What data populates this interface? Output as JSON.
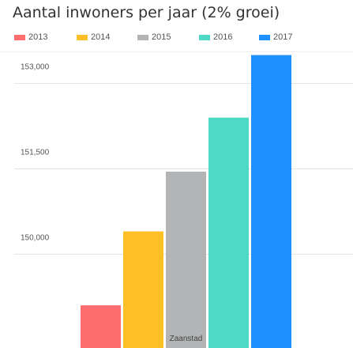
{
  "chart_data": {
    "type": "bar",
    "title": "Aantal inwoners per jaar (2% groei)",
    "xlabel": "",
    "ylabel": "",
    "categories": [
      "Zaanstad"
    ],
    "series": [
      {
        "name": "2013",
        "color": "#ff6e6e",
        "values": [
          149100
        ]
      },
      {
        "name": "2014",
        "color": "#ffbf26",
        "values": [
          150400
        ]
      },
      {
        "name": "2015",
        "color": "#b2b4b6",
        "values": [
          151450
        ]
      },
      {
        "name": "2016",
        "color": "#4dd9c5",
        "values": [
          152400
        ]
      },
      {
        "name": "2017",
        "color": "#1e90ff",
        "values": [
          153500
        ]
      }
    ],
    "yticks": [
      {
        "value": 150000,
        "label": "150,000"
      },
      {
        "value": 151500,
        "label": "151,500"
      },
      {
        "value": 153000,
        "label": "153,000"
      }
    ],
    "ylim": [
      148350,
      153550
    ],
    "grid": true,
    "legend_position": "top"
  }
}
